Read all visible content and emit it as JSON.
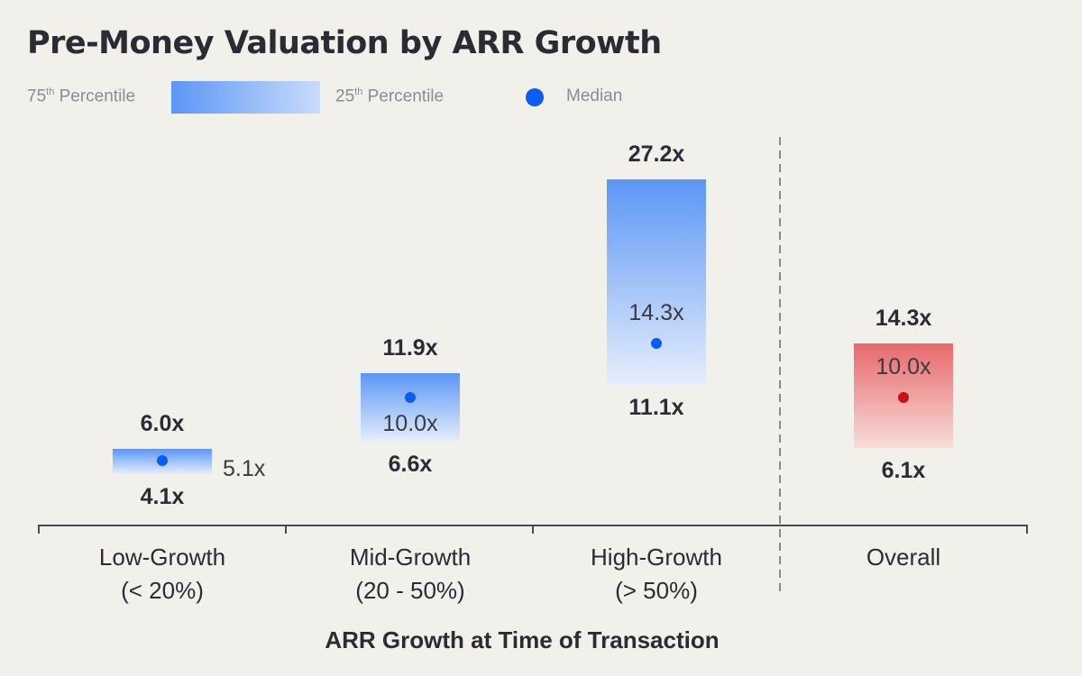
{
  "title": "Pre-Money Valuation by ARR Growth",
  "legend": {
    "p75_prefix": "75",
    "p75_sup": "th",
    "p75_suffix": " Percentile",
    "p25_prefix": "25",
    "p25_sup": "th",
    "p25_suffix": " Percentile",
    "median_label": "Median",
    "median_color": "#0b5cf2"
  },
  "chart_data": {
    "type": "bar",
    "title": "Pre-Money Valuation by ARR Growth",
    "xlabel": "ARR Growth at Time of Transaction",
    "ylabel": "",
    "categories": [
      [
        "Low-Growth",
        "(< 20%)"
      ],
      [
        "Mid-Growth",
        "(20 - 50%)"
      ],
      [
        "High-Growth",
        "(> 50%)"
      ],
      [
        "Overall"
      ]
    ],
    "series": [
      {
        "name": "75th Percentile",
        "values": [
          6.0,
          11.9,
          27.2,
          14.3
        ]
      },
      {
        "name": "25th Percentile",
        "values": [
          4.1,
          6.6,
          11.1,
          6.1
        ]
      },
      {
        "name": "Median",
        "values": [
          5.1,
          10.0,
          14.3,
          10.0
        ]
      }
    ],
    "value_labels": {
      "p75": [
        "6.0x",
        "11.9x",
        "27.2x",
        "14.3x"
      ],
      "p25": [
        "4.1x",
        "6.6x",
        "11.1x",
        "6.1x"
      ],
      "median": [
        "5.1x",
        "10.0x",
        "14.3x",
        "10.0x"
      ]
    },
    "colors": {
      "bar_top": "#5b96f5",
      "bar_bottom": "#e6eefb",
      "overall_top": "#e7686b",
      "overall_bottom": "#f8dcd9",
      "median_dot": "#0b5cf2",
      "overall_dot": "#c81218",
      "axis": "#4a4a4a",
      "divider": "#8a8a8a"
    }
  }
}
